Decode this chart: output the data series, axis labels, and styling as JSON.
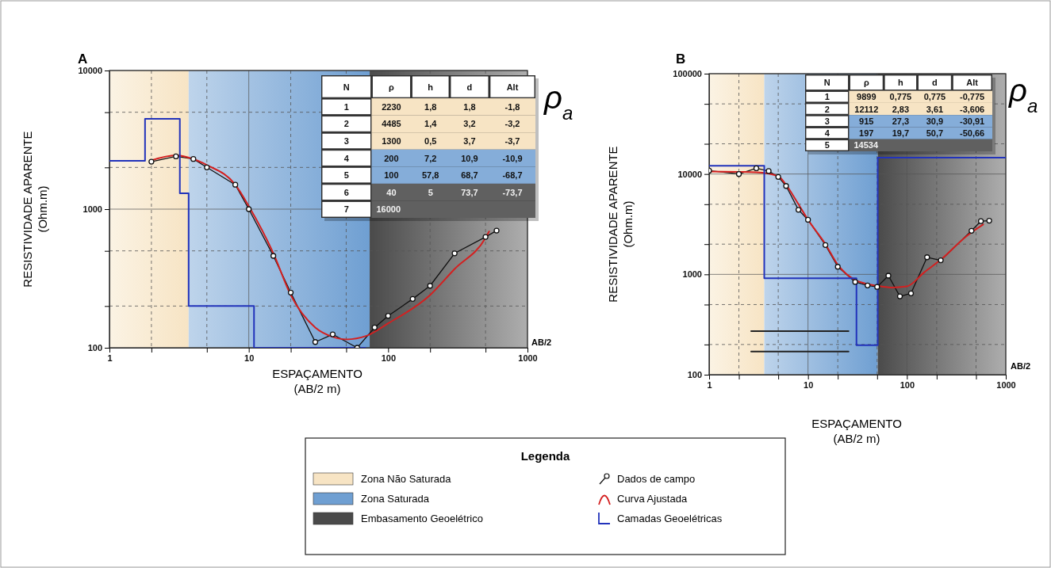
{
  "chart_data": [
    {
      "type": "line",
      "title": "A",
      "xlabel": "ESPAÇAMENTO\n(AB/2 m)",
      "ylabel": "RESISTIVIDADE  APARENTE\n(Ohm.m)",
      "log": "xy",
      "grid": true,
      "legend": "bottom",
      "legend_title": "Legenda",
      "xlim": [
        1,
        1000
      ],
      "ylim": [
        100,
        10000
      ],
      "xticks": [
        1,
        {
          "value": 2,
          "label": null
        },
        {
          "value": 5,
          "label": null
        },
        10,
        {
          "value": 20,
          "label": null
        },
        {
          "value": 50,
          "label": null
        },
        100,
        {
          "value": 200,
          "label": null
        },
        {
          "value": 500,
          "label": null
        },
        1000
      ],
      "yticks": [
        100,
        {
          "value": 200,
          "label": null
        },
        {
          "value": 500,
          "label": null
        },
        1000,
        {
          "value": 2000,
          "label": null
        },
        {
          "value": 5000,
          "label": null
        },
        10000
      ],
      "bands": [
        {
          "axis": "x",
          "from": 1,
          "to": 3.7,
          "label": "Zona Não Saturada",
          "color": "#f7e4c4"
        },
        {
          "axis": "x",
          "from": 3.7,
          "to": 73.7,
          "label": "Zona Saturada",
          "color": "#6f9fd2"
        },
        {
          "axis": "x",
          "from": 73.7,
          "to": 1000,
          "label": "Embasamento Geoelétrico",
          "color": "#4a4a4a"
        }
      ],
      "series": [
        {
          "name": "Dados de campo",
          "type": "line",
          "color": "#111111",
          "marker": "circle",
          "x": [
            2,
            3,
            4,
            5,
            8,
            10,
            15,
            20,
            30,
            40,
            60,
            80,
            100,
            150,
            200,
            300,
            500,
            600
          ],
          "values": [
            2200,
            2400,
            2300,
            2000,
            1500,
            1000,
            460,
            250,
            110,
            125,
            100,
            140,
            170,
            225,
            280,
            480,
            630,
            700
          ]
        },
        {
          "name": "Curva Ajustada",
          "type": "line",
          "color": "#d42020",
          "marker": "none",
          "x": [
            2,
            3,
            4,
            5,
            8,
            10,
            15,
            20,
            30,
            40,
            50,
            70,
            100,
            200,
            300,
            500,
            530
          ],
          "values": [
            2250,
            2450,
            2300,
            2080,
            1500,
            1050,
            480,
            240,
            140,
            120,
            115,
            122,
            150,
            240,
            370,
            620,
            690
          ]
        },
        {
          "name": "Camadas Geoelétricas",
          "type": "step",
          "color": "#2233bb",
          "marker": "none",
          "x": [
            1,
            1.8,
            3.2,
            3.7,
            10.9,
            68.7
          ],
          "values": [
            2230,
            4485,
            1300,
            200,
            100,
            100
          ]
        }
      ],
      "annotations": [
        "AB/2",
        "ρ$_{a}$",
        "N",
        "ρ",
        "h",
        "d",
        "Alt",
        "1",
        "2230",
        "1,8",
        "1,8",
        "-1,8",
        "2",
        "4485",
        "1,4",
        "3,2",
        "-3,2",
        "3",
        "1300",
        "0,5",
        "3,7",
        "-3,7",
        "4",
        "200",
        "7,2",
        "10,9",
        "-10,9",
        "5",
        "100",
        "57,8",
        "68,7",
        "-68,7",
        "6",
        "40",
        "5",
        "73,7",
        "-73,7",
        "7",
        "16000"
      ]
    },
    {
      "type": "line",
      "title": "B",
      "xlabel": "ESPAÇAMENTO\n(AB/2 m)",
      "ylabel": "RESISTIVIDADE  APARENTE\n(Ohm.m)",
      "log": "xy",
      "grid": true,
      "xlim": [
        1,
        1000
      ],
      "ylim": [
        100,
        100000
      ],
      "xticks": [
        1,
        {
          "value": 2,
          "label": null
        },
        {
          "value": 5,
          "label": null
        },
        10,
        {
          "value": 20,
          "label": null
        },
        {
          "value": 50,
          "label": null
        },
        100,
        {
          "value": 200,
          "label": null
        },
        {
          "value": 500,
          "label": null
        },
        1000
      ],
      "yticks": [
        100,
        {
          "value": 200,
          "label": null
        },
        {
          "value": 500,
          "label": null
        },
        1000,
        {
          "value": 2000,
          "label": null
        },
        {
          "value": 5000,
          "label": null
        },
        10000,
        {
          "value": 20000,
          "label": null
        },
        {
          "value": 50000,
          "label": null
        },
        100000
      ],
      "bands": [
        {
          "axis": "x",
          "from": 1,
          "to": 3.61,
          "color": "#f7e4c4"
        },
        {
          "axis": "x",
          "from": 3.61,
          "to": 50.7,
          "color": "#6f9fd2"
        },
        {
          "axis": "x",
          "from": 50.7,
          "to": 1000,
          "color": "#4a4a4a"
        }
      ],
      "series": [
        {
          "type": "line",
          "color": "#111111",
          "marker": "circle",
          "x": [
            1,
            2,
            3,
            4,
            5,
            6,
            8,
            10,
            15,
            20,
            30,
            40,
            50,
            65,
            85,
            110,
            160,
            220,
            450,
            560,
            680
          ],
          "values": [
            10800,
            10000,
            11400,
            10700,
            9350,
            7600,
            4400,
            3500,
            1960,
            1190,
            840,
            776,
            750,
            970,
            604,
            647,
            1480,
            1380,
            2720,
            3390,
            3430
          ]
        },
        {
          "type": "line",
          "color": "#d42020",
          "marker": "none",
          "x": [
            1,
            2,
            3,
            5,
            6,
            8,
            10,
            15,
            20,
            30,
            50,
            70,
            100,
            150,
            220,
            400,
            590
          ],
          "values": [
            10600,
            10500,
            10400,
            9500,
            7800,
            5000,
            3500,
            2000,
            1250,
            880,
            770,
            740,
            760,
            1050,
            1400,
            2400,
            3140
          ]
        },
        {
          "type": "step",
          "color": "#2233bb",
          "marker": "none",
          "x": [
            1,
            3.61,
            30.9,
            50.7,
            1000
          ],
          "values": [
            12112,
            915,
            197,
            14534,
            14534
          ]
        },
        {
          "type": "line",
          "color": "#222222",
          "marker": "none",
          "x": [
            2.66,
            25.7
          ],
          "values": [
            272,
            272
          ]
        },
        {
          "type": "line",
          "color": "#222222",
          "marker": "none",
          "x": [
            2.66,
            25.7
          ],
          "values": [
            170,
            170
          ]
        }
      ],
      "annotations": [
        "AB/2",
        "ρ$_{a}$",
        "N",
        "ρ",
        "h",
        "d",
        "Alt",
        "1",
        "9899",
        "0,775",
        "0,775",
        "-0,775",
        "2",
        "12112",
        "2,83",
        "3,61",
        "-3,606",
        "3",
        "915",
        "27,3",
        "30,9",
        "-30,91",
        "4",
        "197",
        "19,7",
        "50,7",
        "-50,66",
        "5",
        "14534"
      ]
    }
  ]
}
